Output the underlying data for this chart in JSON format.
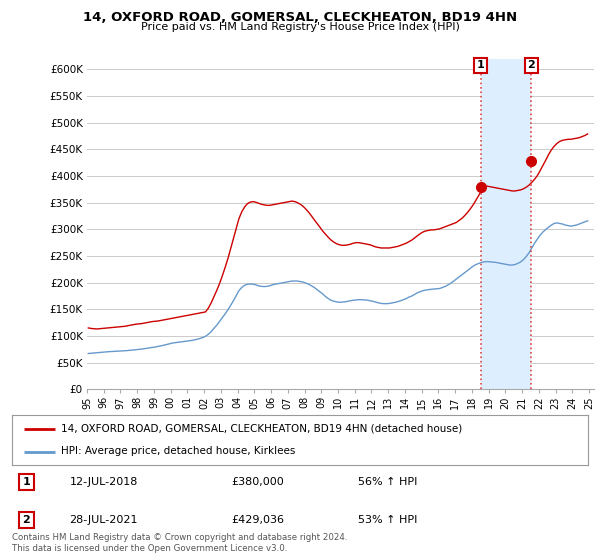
{
  "title": "14, OXFORD ROAD, GOMERSAL, CLECKHEATON, BD19 4HN",
  "subtitle": "Price paid vs. HM Land Registry's House Price Index (HPI)",
  "house_color": "#cc0000",
  "hpi_color": "#6699cc",
  "marker_color": "#cc0000",
  "vline_color": "#dd4444",
  "shade_color": "#ddeeff",
  "background_color": "#ffffff",
  "grid_color": "#cccccc",
  "ylim": [
    0,
    620000
  ],
  "yticks": [
    0,
    50000,
    100000,
    150000,
    200000,
    250000,
    300000,
    350000,
    400000,
    450000,
    500000,
    550000,
    600000
  ],
  "ytick_labels": [
    "£0",
    "£50K",
    "£100K",
    "£150K",
    "£200K",
    "£250K",
    "£300K",
    "£350K",
    "£400K",
    "£450K",
    "£500K",
    "£550K",
    "£600K"
  ],
  "sale_dates": [
    "12-JUL-2018",
    "28-JUL-2021"
  ],
  "sale_prices": [
    380000,
    429036
  ],
  "sale_labels": [
    "1",
    "2"
  ],
  "sale_pct": [
    "56% ↑ HPI",
    "53% ↑ HPI"
  ],
  "legend_house": "14, OXFORD ROAD, GOMERSAL, CLECKHEATON, BD19 4HN (detached house)",
  "legend_hpi": "HPI: Average price, detached house, Kirklees",
  "footer": "Contains HM Land Registry data © Crown copyright and database right 2024.\nThis data is licensed under the Open Government Licence v3.0.",
  "house_data_x": [
    1995.08,
    1995.25,
    1995.42,
    1995.58,
    1995.75,
    1995.92,
    1996.08,
    1996.25,
    1996.42,
    1996.58,
    1996.75,
    1996.92,
    1997.08,
    1997.25,
    1997.42,
    1997.58,
    1997.75,
    1997.92,
    1998.08,
    1998.25,
    1998.42,
    1998.58,
    1998.75,
    1998.92,
    1999.08,
    1999.25,
    1999.42,
    1999.58,
    1999.75,
    1999.92,
    2000.08,
    2000.25,
    2000.42,
    2000.58,
    2000.75,
    2000.92,
    2001.08,
    2001.25,
    2001.42,
    2001.58,
    2001.75,
    2001.92,
    2002.08,
    2002.25,
    2002.42,
    2002.58,
    2002.75,
    2002.92,
    2003.08,
    2003.25,
    2003.42,
    2003.58,
    2003.75,
    2003.92,
    2004.08,
    2004.25,
    2004.42,
    2004.58,
    2004.75,
    2004.92,
    2005.08,
    2005.25,
    2005.42,
    2005.58,
    2005.75,
    2005.92,
    2006.08,
    2006.25,
    2006.42,
    2006.58,
    2006.75,
    2006.92,
    2007.08,
    2007.25,
    2007.42,
    2007.58,
    2007.75,
    2007.92,
    2008.08,
    2008.25,
    2008.42,
    2008.58,
    2008.75,
    2008.92,
    2009.08,
    2009.25,
    2009.42,
    2009.58,
    2009.75,
    2009.92,
    2010.08,
    2010.25,
    2010.42,
    2010.58,
    2010.75,
    2010.92,
    2011.08,
    2011.25,
    2011.42,
    2011.58,
    2011.75,
    2011.92,
    2012.08,
    2012.25,
    2012.42,
    2012.58,
    2012.75,
    2012.92,
    2013.08,
    2013.25,
    2013.42,
    2013.58,
    2013.75,
    2013.92,
    2014.08,
    2014.25,
    2014.42,
    2014.58,
    2014.75,
    2014.92,
    2015.08,
    2015.25,
    2015.42,
    2015.58,
    2015.75,
    2015.92,
    2016.08,
    2016.25,
    2016.42,
    2016.58,
    2016.75,
    2016.92,
    2017.08,
    2017.25,
    2017.42,
    2017.58,
    2017.75,
    2017.92,
    2018.08,
    2018.25,
    2018.42,
    2018.58,
    2018.75,
    2018.92,
    2019.08,
    2019.25,
    2019.42,
    2019.58,
    2019.75,
    2019.92,
    2020.08,
    2020.25,
    2020.42,
    2020.58,
    2020.75,
    2020.92,
    2021.08,
    2021.25,
    2021.42,
    2021.58,
    2021.75,
    2021.92,
    2022.08,
    2022.25,
    2022.42,
    2022.58,
    2022.75,
    2022.92,
    2023.08,
    2023.25,
    2023.42,
    2023.58,
    2023.75,
    2023.92,
    2024.08,
    2024.25,
    2024.42,
    2024.58,
    2024.75,
    2024.92
  ],
  "house_data_y": [
    115000,
    114000,
    113500,
    113000,
    113500,
    114000,
    114500,
    115000,
    115500,
    116000,
    116500,
    117000,
    117500,
    118000,
    119000,
    120000,
    121000,
    122000,
    122500,
    123000,
    124000,
    125000,
    126000,
    127000,
    127500,
    128000,
    129000,
    130000,
    131000,
    132000,
    133000,
    134000,
    135000,
    136000,
    137000,
    138000,
    139000,
    140000,
    141000,
    142000,
    143000,
    144000,
    145000,
    152000,
    162000,
    173000,
    185000,
    198000,
    212000,
    228000,
    245000,
    263000,
    282000,
    302000,
    320000,
    333000,
    342000,
    348000,
    351000,
    352000,
    351000,
    349000,
    347000,
    346000,
    345000,
    345000,
    346000,
    347000,
    348000,
    349000,
    350000,
    351000,
    352000,
    353000,
    352000,
    350000,
    347000,
    343000,
    338000,
    332000,
    325000,
    318000,
    311000,
    304000,
    297000,
    291000,
    285000,
    280000,
    276000,
    273000,
    271000,
    270000,
    270000,
    271000,
    272000,
    274000,
    275000,
    275000,
    274000,
    273000,
    272000,
    271000,
    269000,
    267000,
    266000,
    265000,
    265000,
    265000,
    265000,
    266000,
    267000,
    268000,
    270000,
    272000,
    274000,
    277000,
    280000,
    284000,
    288000,
    292000,
    295000,
    297000,
    298000,
    299000,
    299000,
    300000,
    301000,
    303000,
    305000,
    307000,
    309000,
    311000,
    313000,
    317000,
    321000,
    326000,
    332000,
    339000,
    346000,
    355000,
    364000,
    373000,
    380000,
    381000,
    380000,
    379000,
    378000,
    377000,
    376000,
    375000,
    374000,
    373000,
    372000,
    372000,
    373000,
    374000,
    376000,
    379000,
    383000,
    388000,
    394000,
    401000,
    410000,
    420000,
    430000,
    440000,
    449000,
    456000,
    461000,
    465000,
    467000,
    468000,
    469000,
    469000,
    470000,
    471000,
    472000,
    474000,
    476000,
    479000
  ],
  "hpi_data_x": [
    1995.08,
    1995.25,
    1995.42,
    1995.58,
    1995.75,
    1995.92,
    1996.08,
    1996.25,
    1996.42,
    1996.58,
    1996.75,
    1996.92,
    1997.08,
    1997.25,
    1997.42,
    1997.58,
    1997.75,
    1997.92,
    1998.08,
    1998.25,
    1998.42,
    1998.58,
    1998.75,
    1998.92,
    1999.08,
    1999.25,
    1999.42,
    1999.58,
    1999.75,
    1999.92,
    2000.08,
    2000.25,
    2000.42,
    2000.58,
    2000.75,
    2000.92,
    2001.08,
    2001.25,
    2001.42,
    2001.58,
    2001.75,
    2001.92,
    2002.08,
    2002.25,
    2002.42,
    2002.58,
    2002.75,
    2002.92,
    2003.08,
    2003.25,
    2003.42,
    2003.58,
    2003.75,
    2003.92,
    2004.08,
    2004.25,
    2004.42,
    2004.58,
    2004.75,
    2004.92,
    2005.08,
    2005.25,
    2005.42,
    2005.58,
    2005.75,
    2005.92,
    2006.08,
    2006.25,
    2006.42,
    2006.58,
    2006.75,
    2006.92,
    2007.08,
    2007.25,
    2007.42,
    2007.58,
    2007.75,
    2007.92,
    2008.08,
    2008.25,
    2008.42,
    2008.58,
    2008.75,
    2008.92,
    2009.08,
    2009.25,
    2009.42,
    2009.58,
    2009.75,
    2009.92,
    2010.08,
    2010.25,
    2010.42,
    2010.58,
    2010.75,
    2010.92,
    2011.08,
    2011.25,
    2011.42,
    2011.58,
    2011.75,
    2011.92,
    2012.08,
    2012.25,
    2012.42,
    2012.58,
    2012.75,
    2012.92,
    2013.08,
    2013.25,
    2013.42,
    2013.58,
    2013.75,
    2013.92,
    2014.08,
    2014.25,
    2014.42,
    2014.58,
    2014.75,
    2014.92,
    2015.08,
    2015.25,
    2015.42,
    2015.58,
    2015.75,
    2015.92,
    2016.08,
    2016.25,
    2016.42,
    2016.58,
    2016.75,
    2016.92,
    2017.08,
    2017.25,
    2017.42,
    2017.58,
    2017.75,
    2017.92,
    2018.08,
    2018.25,
    2018.42,
    2018.58,
    2018.75,
    2018.92,
    2019.08,
    2019.25,
    2019.42,
    2019.58,
    2019.75,
    2019.92,
    2020.08,
    2020.25,
    2020.42,
    2020.58,
    2020.75,
    2020.92,
    2021.08,
    2021.25,
    2021.42,
    2021.58,
    2021.75,
    2021.92,
    2022.08,
    2022.25,
    2022.42,
    2022.58,
    2022.75,
    2022.92,
    2023.08,
    2023.25,
    2023.42,
    2023.58,
    2023.75,
    2023.92,
    2024.08,
    2024.25,
    2024.42,
    2024.58,
    2024.75,
    2024.92
  ],
  "hpi_data_y": [
    67000,
    67500,
    68000,
    68500,
    69000,
    69500,
    70000,
    70300,
    70600,
    70900,
    71200,
    71500,
    71800,
    72100,
    72500,
    73000,
    73500,
    74000,
    74500,
    75200,
    76000,
    76800,
    77600,
    78400,
    79200,
    80200,
    81300,
    82500,
    83800,
    85100,
    86500,
    87200,
    87900,
    88600,
    89300,
    90000,
    90700,
    91500,
    92500,
    93700,
    95200,
    97000,
    99200,
    103000,
    108000,
    114000,
    120000,
    127000,
    134000,
    141000,
    149000,
    157000,
    166000,
    176000,
    185000,
    191000,
    195000,
    197000,
    197500,
    197000,
    196000,
    194000,
    193000,
    192500,
    193000,
    194000,
    196000,
    197000,
    198000,
    199000,
    200000,
    201000,
    202000,
    203000,
    203000,
    203000,
    202000,
    201000,
    199000,
    197000,
    194000,
    191000,
    187000,
    183000,
    179000,
    174000,
    170000,
    167000,
    165000,
    164000,
    163000,
    163500,
    164000,
    165000,
    166000,
    167000,
    167500,
    168000,
    168000,
    167500,
    167000,
    166000,
    165000,
    163500,
    162000,
    161000,
    160500,
    160500,
    161000,
    162000,
    163000,
    164500,
    166000,
    168000,
    170000,
    173000,
    175000,
    178000,
    181000,
    183000,
    185000,
    186000,
    187000,
    187500,
    188000,
    188500,
    189000,
    191000,
    193000,
    196000,
    199000,
    203000,
    207000,
    211000,
    215000,
    219000,
    223000,
    227000,
    231000,
    234000,
    236000,
    238000,
    239000,
    239500,
    239000,
    238500,
    238000,
    237000,
    236000,
    235000,
    234000,
    233000,
    233000,
    234000,
    236000,
    239000,
    243000,
    249000,
    256000,
    265000,
    274000,
    282000,
    289000,
    295000,
    300000,
    304000,
    308000,
    311000,
    312000,
    311000,
    310000,
    308000,
    307000,
    306000,
    307000,
    308000,
    310000,
    312000,
    314000,
    316000
  ],
  "sale1_x": 2018.53,
  "sale1_y": 380000,
  "sale2_x": 2021.55,
  "sale2_y": 429036,
  "xlim_left": 1995.0,
  "xlim_right": 2025.3,
  "xtick_years": [
    1995,
    1996,
    1997,
    1998,
    1999,
    2000,
    2001,
    2002,
    2003,
    2004,
    2005,
    2006,
    2007,
    2008,
    2009,
    2010,
    2011,
    2012,
    2013,
    2014,
    2015,
    2016,
    2017,
    2018,
    2019,
    2020,
    2021,
    2022,
    2023,
    2024,
    2025
  ]
}
